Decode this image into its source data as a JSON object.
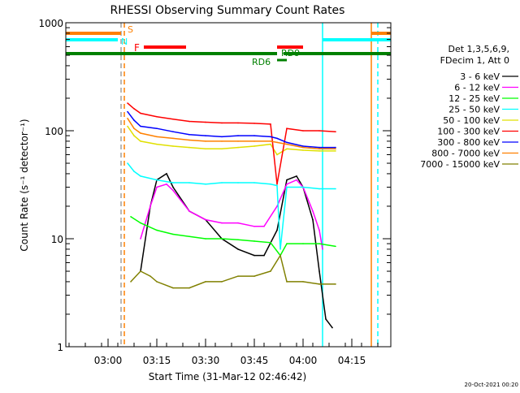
{
  "chart_data": {
    "type": "line",
    "title": "RHESSI Observing Summary Count Rates",
    "xlabel": "Start Time (31-Mar-12 02:46:42)",
    "ylabel": "Count Rate (s⁻¹ detector⁻¹)",
    "xlim": [
      "02:47",
      "04:27"
    ],
    "ylim": [
      1,
      1000
    ],
    "yscale": "log",
    "x_ticks": [
      "03:00",
      "03:15",
      "03:30",
      "03:45",
      "04:00",
      "04:15"
    ],
    "y_ticks": [
      "1",
      "10",
      "100",
      "1000"
    ],
    "legend_header": [
      "Det 1,3,5,6,9,",
      "FDecim 1, Att 0"
    ],
    "legend_position": "right",
    "footer_timestamp": "20-Oct-2021 00:20",
    "series": [
      {
        "name": "3 - 6 keV",
        "color": "#000000",
        "x": [
          "03:10",
          "03:13",
          "03:15",
          "03:18",
          "03:20",
          "03:25",
          "03:30",
          "03:35",
          "03:40",
          "03:45",
          "03:48",
          "03:52",
          "03:55",
          "03:58",
          "04:00",
          "04:03",
          "04:05",
          "04:07",
          "04:09"
        ],
        "y": [
          5,
          20,
          35,
          40,
          30,
          18,
          15,
          10,
          8,
          7,
          7,
          12,
          35,
          38,
          30,
          15,
          5,
          1.8,
          1.5
        ]
      },
      {
        "name": "6 - 12 keV",
        "color": "#ff00ff",
        "x": [
          "03:10",
          "03:13",
          "03:15",
          "03:18",
          "03:20",
          "03:25",
          "03:30",
          "03:35",
          "03:40",
          "03:45",
          "03:48",
          "03:52",
          "03:55",
          "03:58",
          "04:00",
          "04:03",
          "04:05",
          "04:06"
        ],
        "y": [
          10,
          20,
          30,
          32,
          28,
          18,
          15,
          14,
          14,
          13,
          13,
          20,
          32,
          35,
          30,
          18,
          12,
          8
        ]
      },
      {
        "name": "12 - 25 keV",
        "color": "#00ff00",
        "x": [
          "03:07",
          "03:10",
          "03:15",
          "03:20",
          "03:25",
          "03:30",
          "03:35",
          "03:40",
          "03:45",
          "03:50",
          "03:53",
          "03:55",
          "04:00",
          "04:05",
          "04:10"
        ],
        "y": [
          16,
          14,
          12,
          11,
          10.5,
          10,
          10,
          9.8,
          9.5,
          9.2,
          7,
          9,
          9,
          9,
          8.5
        ]
      },
      {
        "name": "25 - 50 keV",
        "color": "#00ffff",
        "x": [
          "03:06",
          "03:08",
          "03:10",
          "03:15",
          "03:20",
          "03:25",
          "03:30",
          "03:35",
          "03:40",
          "03:45",
          "03:50",
          "03:52",
          "03:53",
          "03:55",
          "04:00",
          "04:05",
          "04:10"
        ],
        "y": [
          50,
          42,
          38,
          35,
          33,
          33,
          32,
          33,
          33,
          33,
          32,
          31,
          8,
          30,
          30,
          29,
          29
        ]
      },
      {
        "name": "50 - 100 keV",
        "color": "#e0e000",
        "x": [
          "03:06",
          "03:08",
          "03:10",
          "03:15",
          "03:20",
          "03:25",
          "03:30",
          "03:35",
          "03:40",
          "03:45",
          "03:50",
          "03:52",
          "03:55",
          "04:00",
          "04:05",
          "04:10"
        ],
        "y": [
          110,
          90,
          80,
          75,
          72,
          70,
          68,
          68,
          70,
          72,
          75,
          60,
          68,
          66,
          65,
          65
        ]
      },
      {
        "name": "100 - 300 keV",
        "color": "#ff0000",
        "x": [
          "03:06",
          "03:08",
          "03:10",
          "03:15",
          "03:20",
          "03:25",
          "03:30",
          "03:35",
          "03:40",
          "03:45",
          "03:50",
          "03:52",
          "03:55",
          "04:00",
          "04:05",
          "04:10"
        ],
        "y": [
          180,
          160,
          145,
          135,
          128,
          122,
          120,
          118,
          118,
          117,
          115,
          32,
          105,
          100,
          100,
          98
        ]
      },
      {
        "name": "300 - 800 keV",
        "color": "#0000ff",
        "x": [
          "03:06",
          "03:08",
          "03:10",
          "03:15",
          "03:20",
          "03:25",
          "03:30",
          "03:35",
          "03:40",
          "03:45",
          "03:50",
          "03:52",
          "03:55",
          "04:00",
          "04:05",
          "04:10"
        ],
        "y": [
          150,
          125,
          110,
          105,
          98,
          92,
          90,
          88,
          90,
          90,
          88,
          85,
          78,
          72,
          70,
          70
        ]
      },
      {
        "name": "800 - 7000 keV",
        "color": "#ff8000",
        "x": [
          "03:06",
          "03:08",
          "03:10",
          "03:15",
          "03:20",
          "03:25",
          "03:30",
          "03:35",
          "03:40",
          "03:45",
          "03:50",
          "03:52",
          "03:55",
          "04:00",
          "04:05",
          "04:10"
        ],
        "y": [
          130,
          105,
          95,
          88,
          85,
          82,
          80,
          80,
          80,
          80,
          80,
          78,
          75,
          70,
          68,
          68
        ]
      },
      {
        "name": "7000 - 15000 keV",
        "color": "#808000",
        "x": [
          "03:07",
          "03:10",
          "03:13",
          "03:15",
          "03:20",
          "03:25",
          "03:30",
          "03:35",
          "03:40",
          "03:45",
          "03:50",
          "03:53",
          "03:55",
          "04:00",
          "04:05",
          "04:10"
        ],
        "y": [
          4,
          5,
          4.5,
          4,
          3.5,
          3.5,
          4,
          4,
          4.5,
          4.5,
          5,
          7,
          4,
          4,
          3.8,
          3.8
        ]
      }
    ],
    "flags": [
      {
        "label": "S",
        "color": "#ff8000",
        "segments": [
          [
            "02:47",
            "03:04"
          ],
          [
            "04:21",
            "04:27"
          ]
        ]
      },
      {
        "label": "N",
        "color": "#00ffff",
        "segments": [
          [
            "02:47",
            "03:03"
          ],
          [
            "04:06",
            "04:27"
          ]
        ]
      },
      {
        "label": "F",
        "color": "#ff0000",
        "segments": [
          [
            "03:11",
            "03:24"
          ],
          [
            "03:52",
            "04:00"
          ]
        ]
      },
      {
        "label": "RD9",
        "color": "#008000",
        "segments": [
          [
            "02:47",
            "03:52"
          ],
          [
            "03:54",
            "04:27"
          ]
        ]
      },
      {
        "label": "RD6",
        "color": "#008000",
        "segments": [
          [
            "03:52",
            "03:55"
          ]
        ]
      }
    ],
    "vlines": [
      {
        "x": "03:04",
        "color": "#a0a0a0",
        "style": "dashed"
      },
      {
        "x": "03:05",
        "color": "#ff8000",
        "style": "dashed"
      },
      {
        "x": "04:06",
        "color": "#00ffff",
        "style": "solid"
      },
      {
        "x": "04:21",
        "color": "#ff8000",
        "style": "solid"
      },
      {
        "x": "04:23",
        "color": "#00ffff",
        "style": "dashed"
      }
    ]
  }
}
